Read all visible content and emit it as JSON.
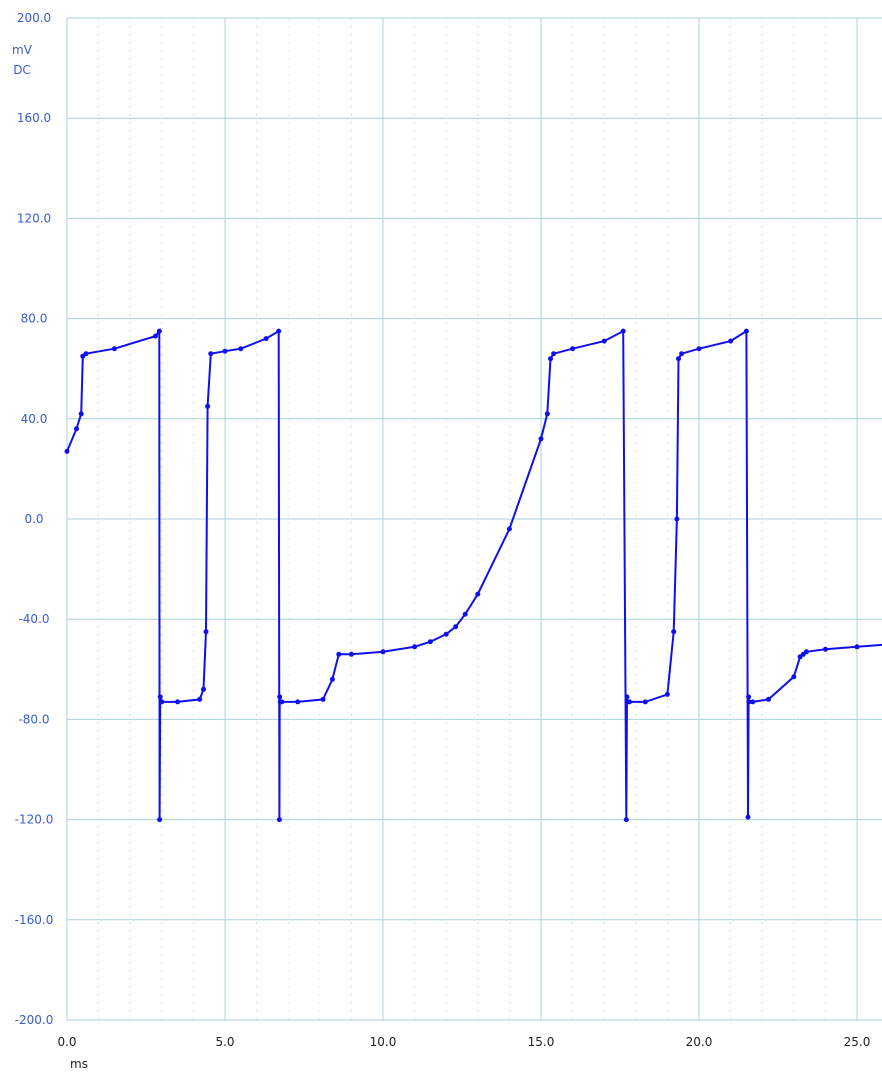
{
  "chart_data": {
    "type": "line",
    "title": "",
    "y_unit": "mV",
    "y_coupling": "DC",
    "x_unit": "ms",
    "xlim": [
      0,
      26.0
    ],
    "ylim": [
      -200,
      200
    ],
    "x_ticks": [
      0.0,
      5.0,
      10.0,
      15.0,
      20.0,
      25.0
    ],
    "x_tick_labels": [
      "0.0",
      "5.0",
      "10.0",
      "15.0",
      "20.0",
      "25.0"
    ],
    "y_ticks": [
      200,
      160,
      120,
      80,
      40,
      0,
      -40,
      -80,
      -120,
      -160,
      -200
    ],
    "y_tick_labels": [
      "200.0",
      "160.0",
      "120.0",
      "80.0",
      "40.0",
      "0.0",
      "-40.0",
      "-80.0",
      "-120.0",
      "-160.0",
      "-200.0"
    ],
    "grid": true,
    "colors": {
      "trace": "#1010ee",
      "grid": "#a9d3db",
      "y_text": "#3b5bd6",
      "x_text": "#222222"
    },
    "series": [
      {
        "x": [
          0.0,
          0.3,
          0.45,
          0.5,
          0.6,
          1.5,
          2.8,
          2.92,
          2.93,
          2.95,
          3.0,
          3.5,
          4.2,
          4.32,
          4.4,
          4.45,
          4.55,
          5.0,
          5.5,
          6.3,
          6.7,
          6.72,
          6.73,
          6.75,
          6.8,
          7.3,
          8.1,
          8.4,
          8.6,
          9.0,
          10.0,
          11.0,
          11.5,
          12.0,
          12.3,
          12.6,
          13.0,
          14.0,
          15.0,
          15.2,
          15.3,
          15.4,
          16.0,
          17.0,
          17.6,
          17.7,
          17.72,
          17.73,
          17.8,
          18.3,
          19.0,
          19.2,
          19.3,
          19.35,
          19.45,
          20.0,
          21.0,
          21.5,
          21.55,
          21.57,
          21.58,
          21.7,
          22.2,
          23.0,
          23.2,
          23.3,
          23.4,
          24.0,
          25.0,
          26.0
        ],
        "y": [
          27,
          36,
          42,
          65,
          66,
          68,
          73,
          75,
          -120,
          -71,
          -73,
          -73,
          -72,
          -68,
          -45,
          45,
          66,
          67,
          68,
          72,
          75,
          -120,
          -71,
          -73,
          -73,
          -73,
          -72,
          -64,
          -54,
          -54,
          -53,
          -51,
          -49,
          -46,
          -43,
          -38,
          -30,
          -4,
          32,
          42,
          64,
          66,
          68,
          71,
          75,
          -120,
          -71,
          -73,
          -73,
          -73,
          -70,
          -45,
          0,
          64,
          66,
          68,
          71,
          75,
          -119,
          -71,
          -73,
          -73,
          -72,
          -63,
          -55,
          -54,
          -53,
          -52,
          -51,
          -50
        ]
      }
    ]
  }
}
